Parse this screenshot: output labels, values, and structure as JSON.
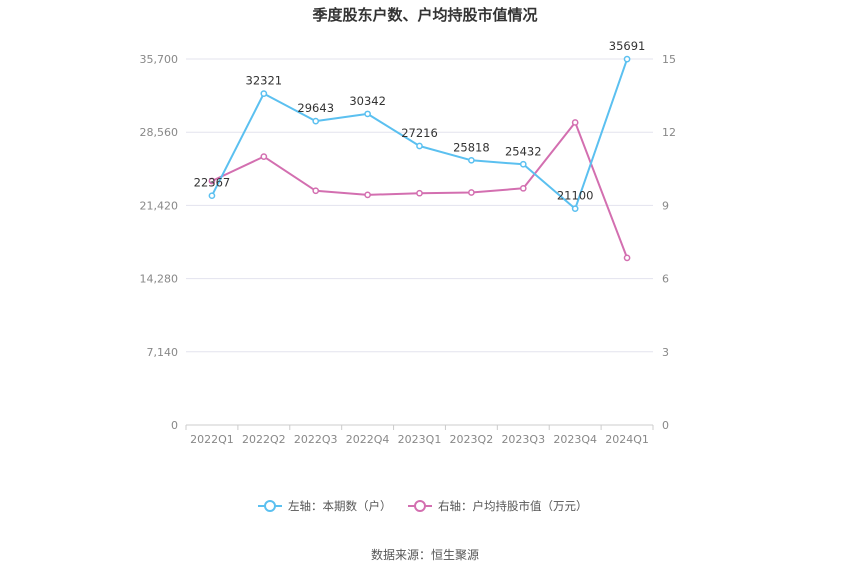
{
  "chart_data": {
    "type": "line",
    "title": "季度股东户数、户均持股市值情况",
    "categories": [
      "2022Q1",
      "2022Q2",
      "2022Q3",
      "2022Q4",
      "2023Q1",
      "2023Q2",
      "2023Q3",
      "2023Q4",
      "2024Q1"
    ],
    "left_axis": {
      "ticks": [
        "0",
        "7,140",
        "14,280",
        "21,420",
        "28,560",
        "35,700"
      ],
      "ylim": [
        0,
        35700
      ]
    },
    "right_axis": {
      "ticks": [
        "0",
        "3",
        "6",
        "9",
        "12",
        "15"
      ],
      "ylim": [
        0,
        15
      ]
    },
    "series": [
      {
        "name": "左轴：本期数（户）",
        "axis": "left",
        "color": "#5bc0f0",
        "values": [
          22367,
          32321,
          29643,
          30342,
          27216,
          25818,
          25432,
          21100,
          35691
        ],
        "labels": [
          "22367",
          "32321",
          "29643",
          "30342",
          "27216",
          "25818",
          "25432",
          "21100",
          "35691"
        ]
      },
      {
        "name": "右轴：户均持股市值（万元）",
        "axis": "right",
        "color": "#d36fb0",
        "values": [
          10.0,
          11.0,
          9.6,
          9.43,
          9.5,
          9.53,
          9.7,
          12.4,
          6.85
        ]
      }
    ],
    "grid": true,
    "legend": "bottom-center"
  },
  "source": "数据来源：恒生聚源"
}
